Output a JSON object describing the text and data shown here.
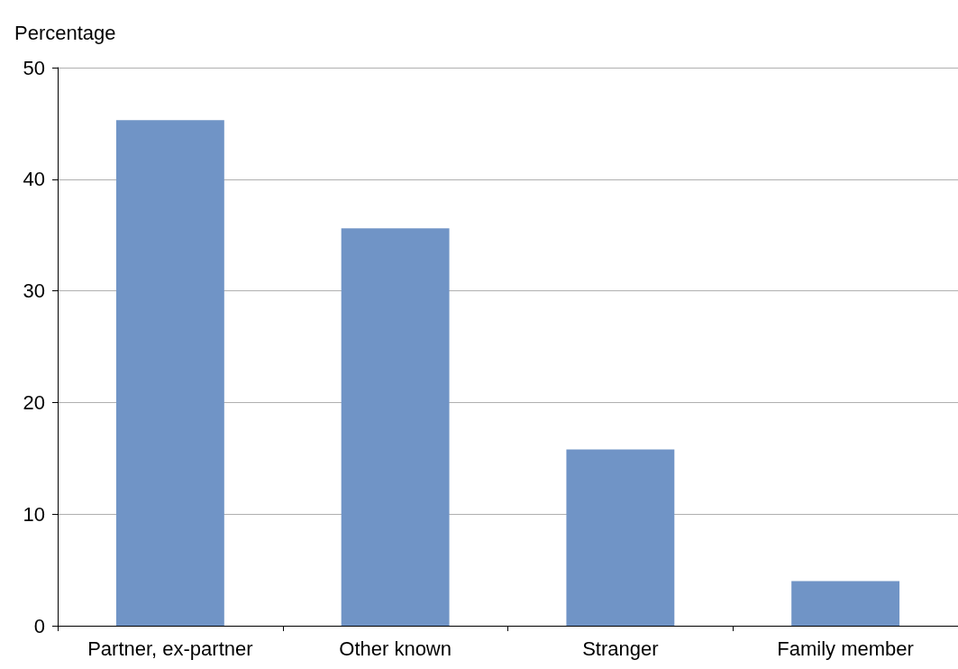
{
  "chart_data": {
    "type": "bar",
    "ylabel": "Percentage",
    "categories": [
      "Partner, ex-partner",
      "Other known",
      "Stranger",
      "Family member"
    ],
    "values": [
      45.3,
      35.6,
      15.8,
      4.0
    ],
    "color": "#7094c6",
    "ylim": [
      0,
      50
    ],
    "yticks": [
      0,
      10,
      20,
      30,
      40,
      50
    ],
    "grid": "y"
  }
}
